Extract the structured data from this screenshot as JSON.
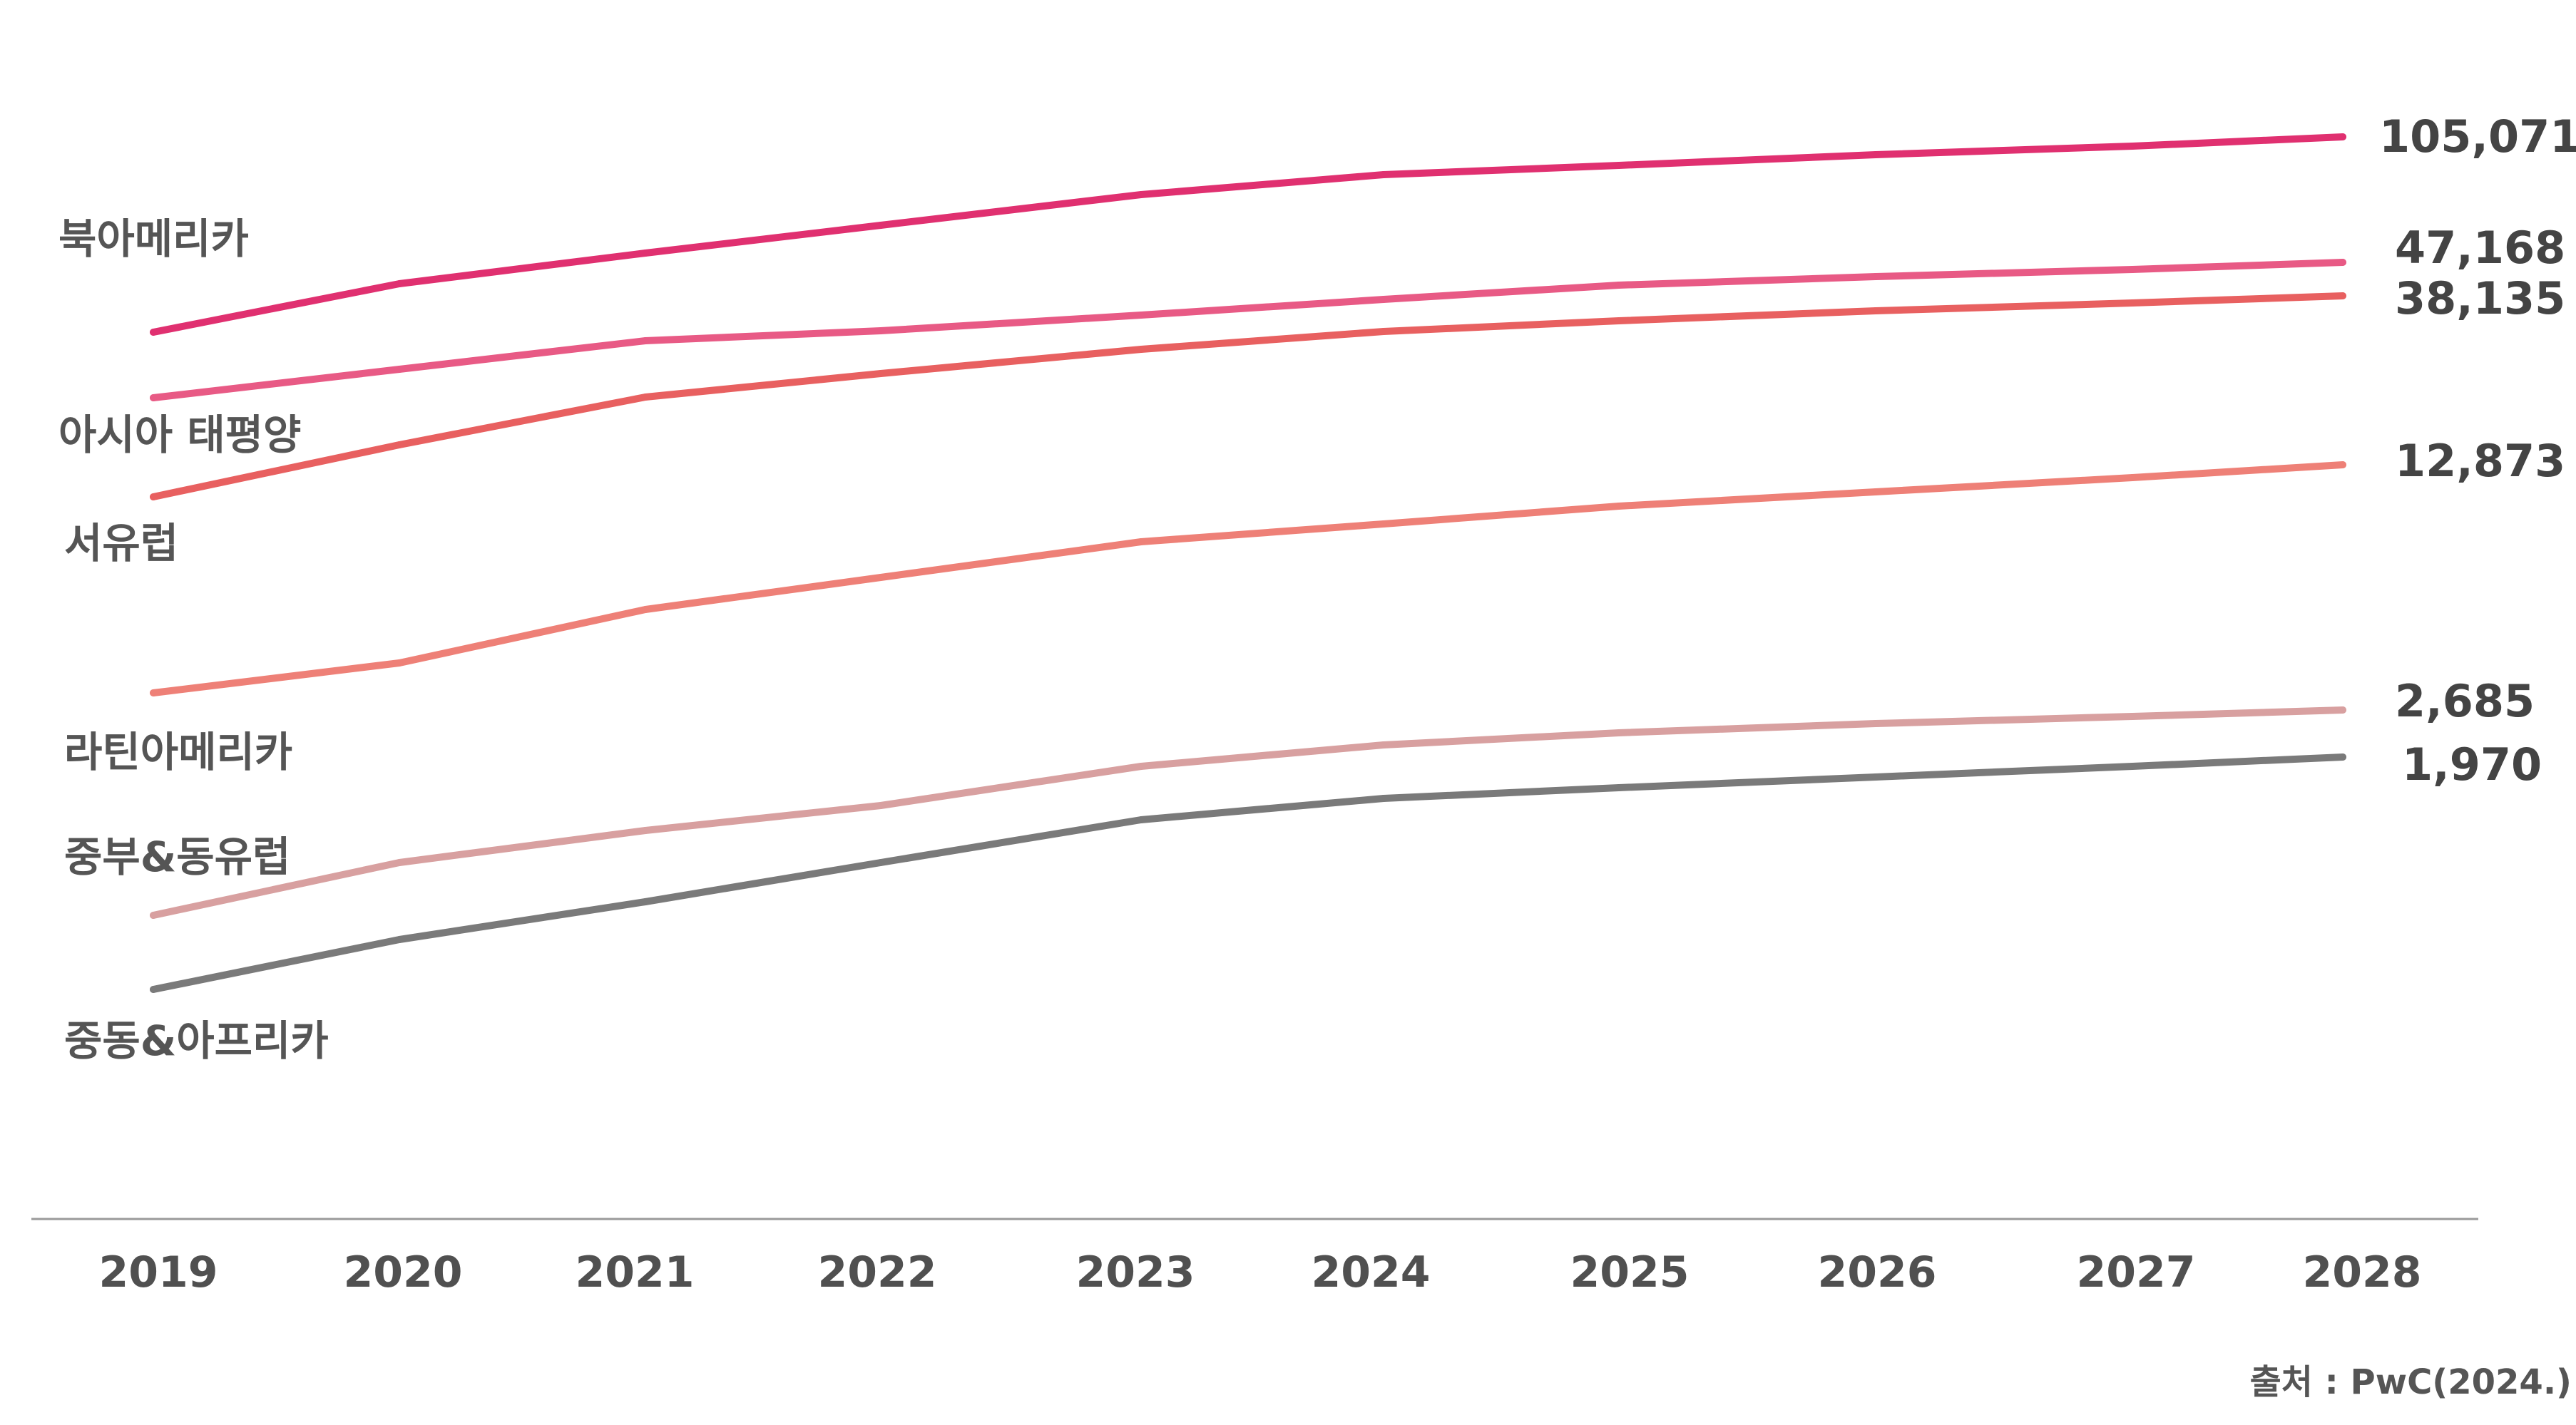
{
  "chart_data": {
    "type": "line",
    "title": "",
    "xlabel": "",
    "ylabel": "",
    "x": [
      "2019",
      "2020",
      "2021",
      "2022",
      "2023",
      "2024",
      "2025",
      "2026",
      "2027",
      "2028"
    ],
    "series": [
      {
        "name": "북아메리카",
        "color": "#e03070",
        "values": [
          68000,
          76000,
          81000,
          85500,
          90500,
          94000,
          96500,
          99500,
          102000,
          105071
        ],
        "end_label": "105,071"
      },
      {
        "name": "아시아 태평양",
        "color": "#e85a85",
        "values": [
          26000,
          30500,
          35000,
          37000,
          40000,
          42500,
          45000,
          45800,
          46500,
          47168
        ],
        "end_label": "47,168"
      },
      {
        "name": "서유럽",
        "color": "#e86060",
        "values": [
          20000,
          23500,
          27000,
          29500,
          32000,
          34000,
          35500,
          36500,
          37300,
          38135
        ],
        "end_label": "38,135"
      },
      {
        "name": "라틴아메리카",
        "color": "#ee8077",
        "values": [
          5900,
          7000,
          8500,
          9500,
          10400,
          11100,
          11700,
          12200,
          12600,
          12873
        ],
        "end_label": "12,873"
      },
      {
        "name": "중부&동유럽",
        "color": "#d8a0a0",
        "values": [
          1560,
          1830,
          1980,
          2100,
          2350,
          2480,
          2550,
          2600,
          2645,
          2685
        ],
        "end_label": "2,685"
      },
      {
        "name": "중동&아프리카",
        "color": "#7a7a7a",
        "values": [
          1200,
          1350,
          1470,
          1590,
          1750,
          1830,
          1890,
          1925,
          1950,
          1970
        ],
        "end_label": "1,970"
      }
    ],
    "yscale": "nonlinear (visual, unlabeled)",
    "y_axis_shown": false,
    "grid": false,
    "legend": "inline-left",
    "source": "출처 : PwC(2024.)"
  }
}
